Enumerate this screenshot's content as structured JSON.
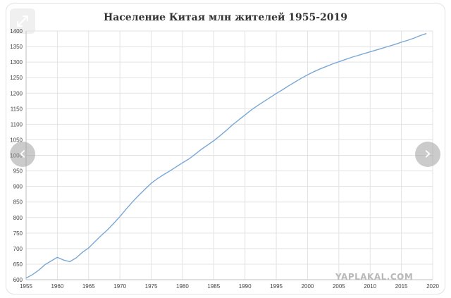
{
  "icons": {
    "expand": "expand-arrows-icon",
    "prev": "chevron-left-icon",
    "next": "chevron-right-icon"
  },
  "nav": {
    "prev_glyph": "‹",
    "next_glyph": "›"
  },
  "watermark": "YAPLAKAL.COM",
  "colors": {
    "line": "#7aa7d6",
    "grid": "#e3e3e3"
  },
  "chart_data": {
    "type": "line",
    "title": "Население Китая млн жителей 1955-2019",
    "xlabel": "",
    "ylabel": "",
    "xlim": [
      1955,
      2020
    ],
    "ylim": [
      600,
      1400
    ],
    "x_ticks": [
      1955,
      1960,
      1965,
      1970,
      1975,
      1980,
      1985,
      1990,
      1995,
      2000,
      2005,
      2010,
      2015,
      2020
    ],
    "y_ticks": [
      600,
      650,
      700,
      750,
      800,
      850,
      900,
      950,
      1000,
      1050,
      1100,
      1150,
      1200,
      1250,
      1300,
      1350,
      1400
    ],
    "grid": true,
    "series": [
      {
        "x": [
          1955,
          1956,
          1957,
          1958,
          1959,
          1960,
          1961,
          1962,
          1963,
          1964,
          1965,
          1966,
          1967,
          1968,
          1969,
          1970,
          1971,
          1972,
          1973,
          1974,
          1975,
          1976,
          1977,
          1978,
          1979,
          1980,
          1981,
          1982,
          1983,
          1984,
          1985,
          1986,
          1987,
          1988,
          1989,
          1990,
          1991,
          1992,
          1993,
          1994,
          1995,
          1996,
          1997,
          1998,
          1999,
          2000,
          2001,
          2002,
          2003,
          2004,
          2005,
          2006,
          2007,
          2008,
          2009,
          2010,
          2011,
          2012,
          2013,
          2014,
          2015,
          2016,
          2017,
          2018,
          2019
        ],
        "values": [
          605,
          616,
          630,
          648,
          660,
          672,
          663,
          658,
          670,
          688,
          702,
          722,
          742,
          760,
          781,
          803,
          827,
          850,
          871,
          891,
          910,
          925,
          938,
          950,
          963,
          976,
          988,
          1003,
          1019,
          1033,
          1047,
          1063,
          1080,
          1098,
          1114,
          1130,
          1146,
          1160,
          1173,
          1186,
          1199,
          1211,
          1224,
          1236,
          1248,
          1259,
          1269,
          1278,
          1286,
          1294,
          1301,
          1308,
          1315,
          1321,
          1327,
          1333,
          1339,
          1345,
          1351,
          1357,
          1364,
          1370,
          1377,
          1385,
          1392
        ]
      }
    ]
  }
}
